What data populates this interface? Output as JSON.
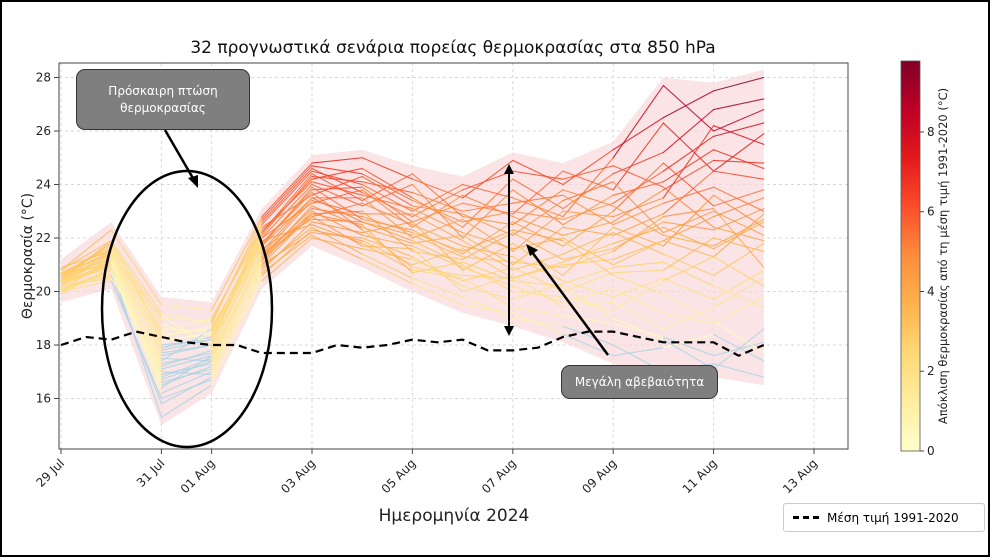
{
  "chart_data": {
    "type": "line",
    "title": "32 προγνωστικά σενάρια πορείας θερμοκρασίας στα 850 hPa",
    "xlabel": "Ημερομηνία 2024",
    "ylabel": "Θερμοκρασία (°C)",
    "xlim_days": [
      0,
      13.76
    ],
    "ylim": [
      14.05,
      28.5
    ],
    "grid": true,
    "x_ticks": [
      {
        "day": 0,
        "label": "29 Jul"
      },
      {
        "day": 2,
        "label": "31 Jul"
      },
      {
        "day": 3,
        "label": "01 Aug"
      },
      {
        "day": 5,
        "label": "03 Aug"
      },
      {
        "day": 7,
        "label": "05 Aug"
      },
      {
        "day": 9,
        "label": "07 Aug"
      },
      {
        "day": 11,
        "label": "09 Aug"
      },
      {
        "day": 13,
        "label": "11 Aug"
      },
      {
        "day": 15,
        "label": "13 Aug"
      }
    ],
    "y_ticks": [
      16,
      18,
      20,
      22,
      24,
      26,
      28
    ],
    "climatology": {
      "name": "Μέση τιμή 1991-2020",
      "step_days": 0.5,
      "values": [
        18.0,
        18.3,
        18.2,
        18.5,
        18.3,
        18.1,
        18.0,
        18.0,
        17.7,
        17.7,
        17.7,
        18.0,
        17.9,
        18.0,
        18.2,
        18.1,
        18.2,
        17.8,
        17.8,
        17.9,
        18.3,
        18.5,
        18.5,
        18.3,
        18.1,
        18.1,
        18.1,
        17.6,
        18.0
      ]
    },
    "members_step_days": 1,
    "members": [
      [
        20.8,
        22.3,
        19.5,
        19.3,
        22.8,
        24.8,
        25.0,
        24.2,
        23.5,
        24.9,
        24.0,
        25.3,
        26.5,
        27.5,
        28.0
      ],
      [
        20.5,
        21.8,
        19.0,
        18.9,
        22.5,
        24.5,
        24.0,
        23.0,
        24.0,
        23.5,
        22.8,
        25.0,
        27.7,
        26.0,
        26.8
      ],
      [
        20.9,
        21.5,
        18.6,
        18.5,
        22.2,
        24.2,
        24.6,
        23.5,
        22.4,
        24.2,
        23.1,
        24.4,
        25.2,
        26.8,
        27.2
      ],
      [
        20.4,
        21.9,
        18.3,
        18.7,
        21.8,
        23.8,
        23.9,
        22.6,
        23.3,
        22.9,
        24.5,
        23.8,
        26.3,
        24.5,
        25.9
      ],
      [
        20.6,
        21.2,
        18.0,
        18.2,
        22.0,
        24.0,
        23.2,
        24.0,
        22.0,
        23.8,
        22.5,
        23.6,
        24.1,
        25.3,
        24.6
      ],
      [
        20.2,
        21.6,
        17.6,
        18.0,
        21.5,
        23.5,
        23.5,
        22.0,
        22.7,
        21.5,
        23.0,
        22.8,
        23.5,
        26.2,
        25.5
      ],
      [
        20.7,
        21.0,
        17.2,
        17.8,
        21.7,
        23.9,
        22.7,
        22.3,
        21.4,
        22.6,
        21.7,
        23.0,
        24.8,
        23.2,
        23.8
      ],
      [
        20.3,
        21.4,
        16.8,
        17.5,
        21.2,
        23.2,
        22.4,
        21.8,
        22.1,
        21.0,
        22.4,
        22.1,
        22.9,
        24.5,
        24.2
      ],
      [
        20.0,
        20.8,
        16.5,
        17.2,
        21.0,
        22.9,
        23.0,
        21.5,
        21.2,
        22.2,
        21.2,
        21.6,
        22.6,
        22.3,
        23.1
      ],
      [
        20.5,
        21.1,
        16.2,
        17.0,
        20.8,
        22.6,
        22.2,
        22.6,
        20.8,
        21.8,
        20.6,
        22.4,
        21.7,
        23.6,
        22.4
      ],
      [
        20.1,
        20.6,
        15.8,
        16.8,
        20.6,
        22.3,
        21.9,
        21.0,
        21.6,
        20.5,
        21.0,
        21.2,
        21.9,
        21.3,
        22.9
      ],
      [
        19.9,
        20.9,
        15.3,
        16.5,
        20.4,
        22.0,
        21.6,
        21.2,
        20.4,
        20.9,
        20.0,
        20.7,
        20.8,
        22.0,
        21.5
      ],
      [
        20.4,
        21.0,
        17.9,
        18.3,
        22.1,
        24.3,
        24.1,
        23.7,
        23.0,
        23.3,
        23.6,
        22.5,
        23.3,
        23.9,
        23.0
      ],
      [
        20.6,
        21.7,
        18.8,
        18.1,
        22.4,
        23.6,
        24.3,
        23.2,
        22.9,
        22.1,
        23.4,
        24.1,
        22.2,
        23.0,
        22.1
      ],
      [
        20.2,
        20.5,
        17.5,
        17.4,
        21.4,
        23.4,
        22.9,
        22.9,
        21.9,
        20.8,
        21.4,
        22.2,
        21.4,
        20.6,
        21.8
      ],
      [
        20.0,
        21.3,
        16.4,
        17.6,
        21.3,
        22.8,
        23.3,
        22.5,
        21.7,
        21.3,
        20.4,
        19.8,
        20.5,
        19.7,
        20.8
      ],
      [
        20.7,
        21.4,
        19.1,
        17.9,
        22.6,
        24.6,
        23.7,
        22.8,
        23.8,
        24.5,
        24.2,
        24.7,
        23.9,
        22.4,
        21.9
      ],
      [
        20.3,
        21.1,
        17.0,
        16.9,
        21.1,
        23.0,
        22.1,
        21.7,
        20.9,
        20.2,
        19.6,
        20.1,
        19.2,
        18.8,
        19.8
      ],
      [
        20.5,
        21.5,
        18.2,
        18.4,
        21.9,
        22.5,
        21.8,
        20.8,
        20.5,
        19.4,
        19.1,
        18.8,
        18.3,
        17.6,
        18.1
      ],
      [
        20.1,
        20.7,
        16.9,
        17.3,
        20.9,
        22.4,
        21.4,
        20.5,
        19.8,
        19.0,
        18.7,
        18.0,
        17.0,
        17.3,
        16.8
      ],
      [
        20.4,
        21.2,
        17.4,
        18.6,
        21.6,
        22.7,
        22.6,
        21.9,
        21.0,
        20.0,
        19.8,
        19.3,
        20.4,
        21.3,
        20.2
      ],
      [
        20.6,
        21.8,
        18.5,
        19.0,
        22.3,
        24.1,
        23.6,
        23.1,
        22.2,
        21.6,
        22.0,
        21.0,
        21.9,
        22.8,
        23.5
      ],
      [
        20.2,
        21.0,
        16.6,
        17.1,
        21.0,
        22.2,
        22.0,
        21.3,
        20.2,
        19.7,
        20.3,
        20.9,
        21.1,
        20.2,
        19.4
      ],
      [
        20.8,
        21.9,
        19.2,
        18.8,
        22.7,
        24.7,
        24.4,
        23.4,
        22.6,
        23.0,
        22.7,
        23.3,
        24.5,
        25.8,
        26.3
      ],
      [
        20.3,
        20.9,
        17.3,
        17.7,
        21.3,
        23.1,
        22.8,
        22.2,
        21.5,
        22.3,
        21.9,
        20.6,
        19.9,
        18.9,
        17.7
      ],
      [
        20.5,
        21.3,
        17.8,
        18.2,
        21.8,
        23.7,
        22.3,
        20.9,
        20.6,
        20.5,
        21.1,
        21.8,
        22.4,
        21.6,
        22.6
      ],
      [
        20.0,
        20.4,
        16.0,
        16.7,
        20.7,
        22.1,
        21.2,
        20.3,
        19.5,
        19.2,
        18.4,
        17.6,
        17.9,
        18.4,
        17.4
      ],
      [
        20.7,
        21.6,
        18.4,
        18.6,
        22.0,
        23.3,
        23.8,
        22.4,
        23.6,
        22.8,
        22.1,
        22.6,
        23.8,
        24.9,
        24.8
      ],
      [
        20.4,
        21.4,
        17.7,
        18.0,
        21.7,
        23.5,
        22.6,
        22.1,
        21.3,
        21.1,
        20.9,
        21.5,
        22.8,
        23.1,
        20.9
      ],
      [
        20.1,
        20.8,
        16.7,
        17.4,
        21.2,
        22.8,
        21.7,
        21.6,
        20.0,
        20.6,
        19.4,
        19.6,
        18.6,
        19.4,
        20.5
      ],
      [
        20.6,
        21.5,
        18.1,
        18.5,
        22.2,
        24.4,
        23.4,
        24.4,
        22.8,
        22.5,
        23.8,
        23.2,
        22.1,
        21.7,
        22.7
      ],
      [
        20.3,
        21.0,
        17.1,
        17.6,
        21.4,
        22.9,
        22.5,
        20.7,
        21.1,
        20.4,
        20.2,
        19.0,
        18.2,
        17.1,
        18.6
      ]
    ],
    "colorbar": {
      "label": "Απόκλιση θερμοκρασίας από τη μέση τιμή 1991-2020 (°C)",
      "range": [
        0,
        9.78
      ],
      "ticks": [
        0,
        2,
        4,
        6,
        8
      ],
      "colormap": [
        "#ffffcc",
        "#ffeda0",
        "#fed976",
        "#feb24c",
        "#fd8d3c",
        "#fc4e2a",
        "#e31a1c",
        "#bd0026",
        "#800026"
      ],
      "below_zero_color": "#a9d4e4"
    },
    "envelope_color": "#f9d9dc",
    "annotations": {
      "drop": "Πρόσκαιρη πτώση θερμοκρασίας",
      "uncertainty": "Μεγάλη αβεβαιότητα"
    },
    "legend": {
      "label": "Μέση τιμή 1991-2020",
      "placement": "bottom-right"
    }
  }
}
